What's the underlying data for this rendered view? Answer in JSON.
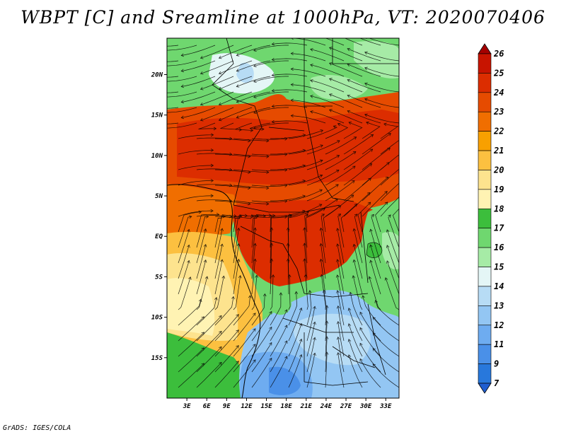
{
  "title": "WBPT [C] and Sreamline at 1000hPa, VT: 2020070406",
  "credit": "GrADS: IGES/COLA",
  "map": {
    "variable": "Wet-bulb potential temperature (WBPT)",
    "units": "C",
    "level": "1000hPa",
    "valid_time": "2020070406",
    "lon_range": [
      0,
      35
    ],
    "lat_range": [
      -20,
      24.5
    ],
    "x_ticks": [
      "3E",
      "6E",
      "9E",
      "12E",
      "15E",
      "18E",
      "21E",
      "24E",
      "27E",
      "30E",
      "33E"
    ],
    "x_tick_values": [
      3,
      6,
      9,
      12,
      15,
      18,
      21,
      24,
      27,
      30,
      33
    ],
    "y_ticks": [
      "20N",
      "15N",
      "10N",
      "5N",
      "EQ",
      "5S",
      "10S",
      "15S"
    ],
    "y_tick_values": [
      20,
      15,
      10,
      5,
      0,
      -5,
      -10,
      -15
    ]
  },
  "colorbar": {
    "labels": [
      "26",
      "25",
      "24",
      "23",
      "22",
      "21",
      "20",
      "19",
      "18",
      "17",
      "16",
      "15",
      "14",
      "13",
      "12",
      "11",
      "9",
      "7"
    ],
    "colors": [
      "#a50000",
      "#c81400",
      "#dc2d00",
      "#e64b00",
      "#f06e00",
      "#f8a000",
      "#fcc040",
      "#fde38e",
      "#fff3b3",
      "#3cbe3c",
      "#6fd76f",
      "#a6eba6",
      "#e4f6f6",
      "#b7dcf5",
      "#93c6f3",
      "#6eacf0",
      "#4a90e8",
      "#2878dc",
      "#1f5ed0"
    ]
  }
}
